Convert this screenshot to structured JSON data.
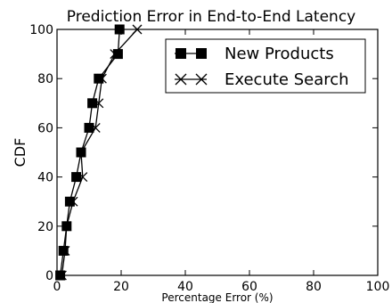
{
  "chart_data": {
    "type": "line",
    "title": "Prediction Error in End-to-End Latency",
    "xlabel": "Percentage Error (%)",
    "ylabel": "CDF",
    "xlim": [
      0,
      100
    ],
    "ylim": [
      0,
      100
    ],
    "xticks": [
      "0",
      "20",
      "40",
      "60",
      "80",
      "100"
    ],
    "yticks": [
      "0",
      "20",
      "40",
      "60",
      "80",
      "100"
    ],
    "grid": false,
    "legend_position": "top-right",
    "series": [
      {
        "name": "New Products",
        "marker": "square",
        "color": "#000000",
        "points": [
          [
            1,
            0
          ],
          [
            2,
            10
          ],
          [
            3,
            20
          ],
          [
            4,
            30
          ],
          [
            6,
            40
          ],
          [
            7.5,
            50
          ],
          [
            10,
            60
          ],
          [
            11,
            70
          ],
          [
            13,
            80
          ],
          [
            19,
            90
          ],
          [
            19.5,
            100
          ]
        ]
      },
      {
        "name": "Execute Search",
        "marker": "x",
        "color": "#000000",
        "points": [
          [
            1.5,
            0
          ],
          [
            2.5,
            10
          ],
          [
            3,
            20
          ],
          [
            5,
            30
          ],
          [
            8,
            40
          ],
          [
            7.5,
            50
          ],
          [
            12,
            60
          ],
          [
            13,
            70
          ],
          [
            14,
            80
          ],
          [
            18,
            90
          ],
          [
            25,
            100
          ]
        ]
      }
    ]
  }
}
